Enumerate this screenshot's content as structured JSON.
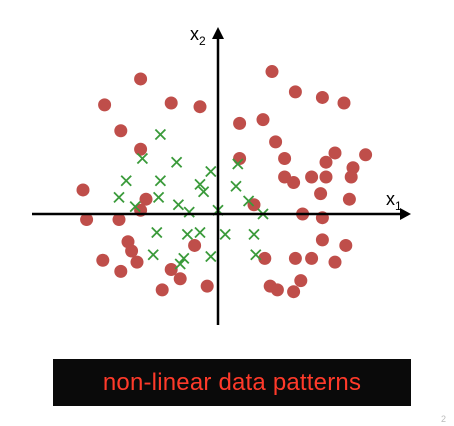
{
  "axes": {
    "x_label": "x",
    "x_sub": "1",
    "y_label": "x",
    "y_sub": "2"
  },
  "banner": {
    "text": "non-linear data patterns"
  },
  "corner_mark": "2",
  "colors": {
    "class_a": "#bf4e4a",
    "class_b": "#3a9a3a",
    "axis": "#000000",
    "banner_text": "#ff3a2a",
    "banner_bg": "#0a0a0a"
  },
  "chart_data": {
    "type": "scatter",
    "series": [
      {
        "marker": "circle",
        "points": [
          [
            -4.3,
            7.3
          ],
          [
            3.0,
            7.7
          ],
          [
            -6.3,
            5.9
          ],
          [
            -2.6,
            6.0
          ],
          [
            -1.0,
            5.8
          ],
          [
            2.5,
            5.1
          ],
          [
            4.3,
            6.6
          ],
          [
            5.8,
            6.3
          ],
          [
            7.0,
            6.0
          ],
          [
            1.2,
            4.9
          ],
          [
            -5.4,
            4.5
          ],
          [
            -4.3,
            3.5
          ],
          [
            3.2,
            3.9
          ],
          [
            6.5,
            3.3
          ],
          [
            1.2,
            3.0
          ],
          [
            3.7,
            3.0
          ],
          [
            6.0,
            2.8
          ],
          [
            8.2,
            3.2
          ],
          [
            7.5,
            2.5
          ],
          [
            3.7,
            2.0
          ],
          [
            4.2,
            1.7
          ],
          [
            5.2,
            2.0
          ],
          [
            6.0,
            2.0
          ],
          [
            7.4,
            2.0
          ],
          [
            -7.5,
            1.3
          ],
          [
            -4.0,
            0.8
          ],
          [
            5.7,
            1.1
          ],
          [
            7.3,
            0.8
          ],
          [
            2.0,
            0.5
          ],
          [
            -4.3,
            0.2
          ],
          [
            -7.3,
            -0.3
          ],
          [
            -5.5,
            -0.3
          ],
          [
            4.7,
            0.0
          ],
          [
            5.8,
            -0.2
          ],
          [
            -5.0,
            -1.5
          ],
          [
            5.8,
            -1.4
          ],
          [
            -1.3,
            -1.7
          ],
          [
            -4.8,
            -2.0
          ],
          [
            7.1,
            -1.7
          ],
          [
            -6.4,
            -2.5
          ],
          [
            -4.5,
            -2.6
          ],
          [
            -2.6,
            -3.0
          ],
          [
            2.6,
            -2.4
          ],
          [
            4.3,
            -2.4
          ],
          [
            5.2,
            -2.4
          ],
          [
            6.5,
            -2.6
          ],
          [
            -5.4,
            -3.1
          ],
          [
            -2.1,
            -3.5
          ],
          [
            4.6,
            -3.6
          ],
          [
            2.9,
            -3.9
          ],
          [
            -0.6,
            -3.9
          ],
          [
            3.3,
            -4.1
          ],
          [
            4.2,
            -4.2
          ],
          [
            -3.1,
            -4.1
          ]
        ]
      },
      {
        "marker": "x",
        "points": [
          [
            -3.2,
            4.3
          ],
          [
            -4.2,
            3.0
          ],
          [
            -2.3,
            2.8
          ],
          [
            1.1,
            2.7
          ],
          [
            -0.4,
            2.3
          ],
          [
            -5.1,
            1.8
          ],
          [
            -3.2,
            1.8
          ],
          [
            -1.0,
            1.6
          ],
          [
            1.0,
            1.5
          ],
          [
            -5.5,
            0.9
          ],
          [
            -3.3,
            0.9
          ],
          [
            -0.8,
            1.2
          ],
          [
            1.7,
            0.7
          ],
          [
            -4.6,
            0.4
          ],
          [
            -2.2,
            0.5
          ],
          [
            -1.6,
            0.1
          ],
          [
            0.0,
            0.2
          ],
          [
            2.5,
            0.0
          ],
          [
            -1.0,
            -1.0
          ],
          [
            -3.4,
            -1.0
          ],
          [
            -1.7,
            -1.1
          ],
          [
            0.4,
            -1.1
          ],
          [
            2.0,
            -1.1
          ],
          [
            -3.6,
            -2.2
          ],
          [
            -1.9,
            -2.4
          ],
          [
            -0.4,
            -2.3
          ],
          [
            2.1,
            -2.2
          ],
          [
            -2.1,
            -2.7
          ]
        ]
      }
    ],
    "xlim": [
      -8.5,
      8.5
    ],
    "ylim": [
      -5.5,
      8.5
    ]
  }
}
